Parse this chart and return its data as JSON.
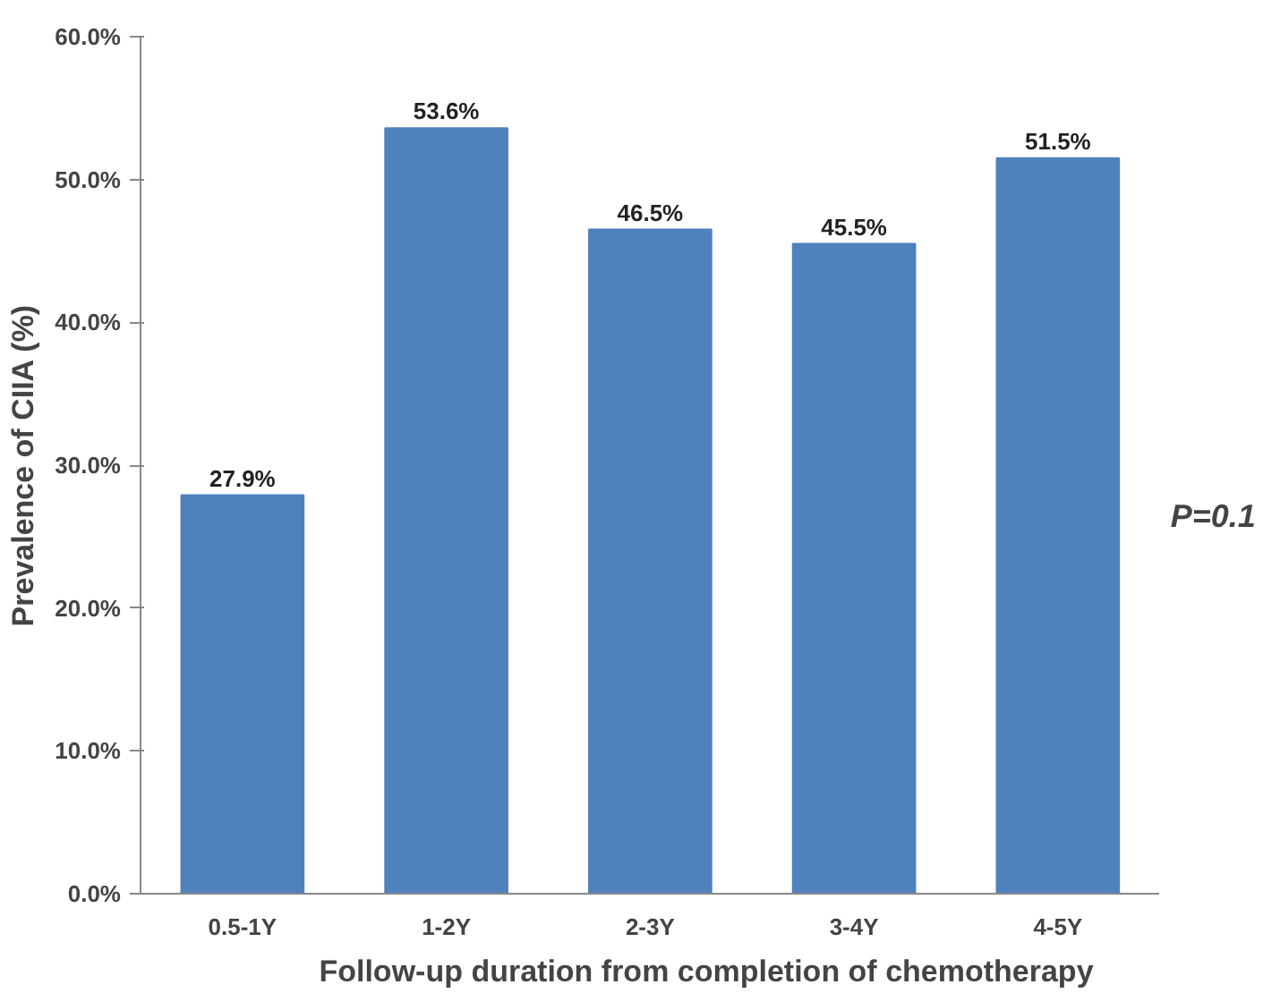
{
  "chart_data": {
    "type": "bar",
    "xlabel": "Follow-up duration from completion of chemotherapy",
    "ylabel": "Prevalence of CIIA (%)",
    "categories": [
      "0.5-1Y",
      "1-2Y",
      "2-3Y",
      "3-4Y",
      "4-5Y"
    ],
    "values": [
      27.9,
      53.6,
      46.5,
      45.5,
      51.5
    ],
    "value_labels": [
      "27.9%",
      "53.6%",
      "46.5%",
      "45.5%",
      "51.5%"
    ],
    "color": "#4f81bd",
    "ylim": [
      0,
      60
    ],
    "yticks": [
      {
        "value": 0,
        "label": "0.0%"
      },
      {
        "value": 10,
        "label": "10.0%"
      },
      {
        "value": 20,
        "label": "20.0%"
      },
      {
        "value": 30,
        "label": "30.0%"
      },
      {
        "value": 40,
        "label": "40.0%"
      },
      {
        "value": 50,
        "label": "50.0%"
      },
      {
        "value": 60,
        "label": "60.0%"
      }
    ],
    "grid": false,
    "annotations": [
      "P=0.1"
    ]
  }
}
